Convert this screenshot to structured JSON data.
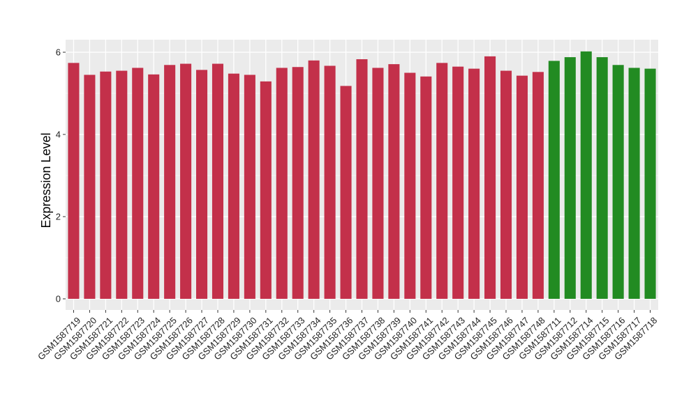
{
  "chart_data": {
    "type": "bar",
    "ylabel": "Expression Level",
    "xlabel": "",
    "ylim": [
      0,
      6.2
    ],
    "yticks": [
      0,
      2,
      4,
      6
    ],
    "grid": true,
    "colors": {
      "red": "#c3304a",
      "green": "#228b22",
      "panel": "#ebebeb",
      "grid": "#ffffff"
    },
    "categories": [
      "GSM1587719",
      "GSM1587720",
      "GSM1587721",
      "GSM1587722",
      "GSM1587723",
      "GSM1587724",
      "GSM1587725",
      "GSM1587726",
      "GSM1587727",
      "GSM1587728",
      "GSM1587729",
      "GSM1587730",
      "GSM1587731",
      "GSM1587732",
      "GSM1587733",
      "GSM1587734",
      "GSM1587735",
      "GSM1587736",
      "GSM1587737",
      "GSM1587738",
      "GSM1587739",
      "GSM1587740",
      "GSM1587741",
      "GSM1587742",
      "GSM1587743",
      "GSM1587744",
      "GSM1587745",
      "GSM1587746",
      "GSM1587747",
      "GSM1587748",
      "GSM1587711",
      "GSM1587712",
      "GSM1587714",
      "GSM1587715",
      "GSM1587716",
      "GSM1587717",
      "GSM1587718"
    ],
    "values": [
      5.74,
      5.45,
      5.53,
      5.55,
      5.62,
      5.46,
      5.69,
      5.72,
      5.57,
      5.72,
      5.48,
      5.45,
      5.29,
      5.62,
      5.64,
      5.8,
      5.67,
      5.18,
      5.83,
      5.62,
      5.71,
      5.5,
      5.41,
      5.74,
      5.65,
      5.6,
      5.9,
      5.55,
      5.43,
      5.52,
      5.79,
      5.88,
      6.02,
      5.88,
      5.69,
      5.62,
      5.6
    ],
    "bar_colors": [
      "red",
      "red",
      "red",
      "red",
      "red",
      "red",
      "red",
      "red",
      "red",
      "red",
      "red",
      "red",
      "red",
      "red",
      "red",
      "red",
      "red",
      "red",
      "red",
      "red",
      "red",
      "red",
      "red",
      "red",
      "red",
      "red",
      "red",
      "red",
      "red",
      "red",
      "green",
      "green",
      "green",
      "green",
      "green",
      "green",
      "green"
    ]
  }
}
